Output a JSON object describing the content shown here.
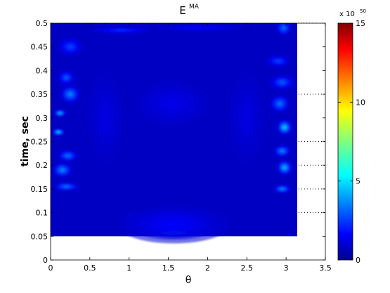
{
  "chart_data": {
    "type": "heatmap",
    "title": "E",
    "title_superscript": "MA",
    "xlabel": "θ",
    "ylabel": "time, sec",
    "xlim": [
      0,
      3.5
    ],
    "ylim": [
      0,
      0.5
    ],
    "x_ticks": [
      0,
      0.5,
      1,
      1.5,
      2,
      2.5,
      3,
      3.5
    ],
    "x_tick_labels": [
      "0",
      "0.5",
      "1",
      "1.5",
      "2",
      "2.5",
      "3",
      "3.5"
    ],
    "y_ticks": [
      0,
      0.05,
      0.1,
      0.15,
      0.2,
      0.25,
      0.3,
      0.35,
      0.4,
      0.45,
      0.5
    ],
    "y_tick_labels": [
      "0",
      "0.05",
      "0.1",
      "0.15",
      "0.2",
      "0.25",
      "0.3",
      "0.35",
      "0.4",
      "0.45",
      "0.5"
    ],
    "data_extent": {
      "x": [
        0,
        3.1416
      ],
      "y": [
        0.05,
        0.5
      ]
    },
    "colormap": "jet",
    "colorbar": {
      "range": [
        0,
        15
      ],
      "ticks": [
        0,
        5,
        10,
        15
      ],
      "tick_labels": [
        "0",
        "5",
        "10",
        "15"
      ],
      "exponent_label": "x 10",
      "exponent_power": "50"
    },
    "dotted_reference_lines": [
      0.1,
      0.15,
      0.2,
      0.25,
      0.35,
      0.5
    ],
    "background_value": 1.0,
    "hotspots": [
      {
        "x": 1.57,
        "y": 0.06,
        "value": 6.5,
        "sx": 0.18,
        "sy": 0.008
      },
      {
        "x": 1.57,
        "y": 0.075,
        "value": 2.2,
        "sx": 0.45,
        "sy": 0.025
      },
      {
        "x": 0.2,
        "y": 0.155,
        "value": 4.5,
        "sx": 0.1,
        "sy": 0.006
      },
      {
        "x": 0.15,
        "y": 0.19,
        "value": 5.0,
        "sx": 0.08,
        "sy": 0.01
      },
      {
        "x": 0.22,
        "y": 0.22,
        "value": 4.5,
        "sx": 0.08,
        "sy": 0.008
      },
      {
        "x": 0.1,
        "y": 0.27,
        "value": 6.5,
        "sx": 0.05,
        "sy": 0.005
      },
      {
        "x": 0.12,
        "y": 0.31,
        "value": 6.0,
        "sx": 0.05,
        "sy": 0.005
      },
      {
        "x": 0.25,
        "y": 0.35,
        "value": 5.0,
        "sx": 0.08,
        "sy": 0.012
      },
      {
        "x": 0.2,
        "y": 0.385,
        "value": 4.0,
        "sx": 0.07,
        "sy": 0.01
      },
      {
        "x": 0.25,
        "y": 0.45,
        "value": 3.5,
        "sx": 0.1,
        "sy": 0.012
      },
      {
        "x": 2.95,
        "y": 0.15,
        "value": 5.0,
        "sx": 0.07,
        "sy": 0.006
      },
      {
        "x": 2.98,
        "y": 0.195,
        "value": 6.0,
        "sx": 0.06,
        "sy": 0.01
      },
      {
        "x": 2.95,
        "y": 0.23,
        "value": 5.0,
        "sx": 0.07,
        "sy": 0.008
      },
      {
        "x": 2.98,
        "y": 0.28,
        "value": 6.5,
        "sx": 0.06,
        "sy": 0.01
      },
      {
        "x": 2.92,
        "y": 0.33,
        "value": 4.5,
        "sx": 0.08,
        "sy": 0.012
      },
      {
        "x": 2.95,
        "y": 0.375,
        "value": 4.0,
        "sx": 0.1,
        "sy": 0.01
      },
      {
        "x": 2.9,
        "y": 0.42,
        "value": 3.5,
        "sx": 0.1,
        "sy": 0.008
      },
      {
        "x": 2.97,
        "y": 0.49,
        "value": 4.5,
        "sx": 0.06,
        "sy": 0.01
      },
      {
        "x": 0.9,
        "y": 0.485,
        "value": 3.0,
        "sx": 0.25,
        "sy": 0.005
      },
      {
        "x": 1.9,
        "y": 0.49,
        "value": 2.5,
        "sx": 0.35,
        "sy": 0.004
      },
      {
        "x": 1.55,
        "y": 0.33,
        "value": 1.8,
        "sx": 0.3,
        "sy": 0.03
      },
      {
        "x": 2.5,
        "y": 0.3,
        "value": 1.6,
        "sx": 0.15,
        "sy": 0.06
      },
      {
        "x": 0.7,
        "y": 0.3,
        "value": 1.6,
        "sx": 0.15,
        "sy": 0.06
      }
    ]
  }
}
